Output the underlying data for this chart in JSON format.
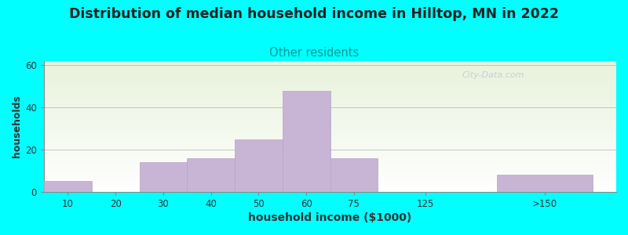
{
  "title": "Distribution of median household income in Hilltop, MN in 2022",
  "subtitle": "Other residents",
  "xlabel": "household income ($1000)",
  "ylabel": "households",
  "background_color": "#00FFFF",
  "bar_color": "#c8b4d4",
  "bar_edge_color": "#b8a4c8",
  "title_fontsize": 12.5,
  "title_color": "#222222",
  "subtitle_fontsize": 10.5,
  "subtitle_color": "#009999",
  "xlabel_fontsize": 10,
  "ylabel_fontsize": 9,
  "yticks": [
    0,
    20,
    40,
    60
  ],
  "ylim": [
    0,
    62
  ],
  "watermark": "City-Data.com",
  "tick_labels": [
    "10",
    "20",
    "30",
    "40",
    "50",
    "60",
    "75",
    "125",
    ">150"
  ],
  "tick_positions": [
    0.5,
    1.5,
    2.5,
    3.5,
    4.5,
    5.5,
    6.5,
    8.0,
    10.5
  ],
  "bar_lefts": [
    0.0,
    2.0,
    3.0,
    4.0,
    5.0,
    6.0,
    9.5
  ],
  "bar_widths": [
    1.0,
    1.0,
    1.0,
    1.0,
    1.0,
    1.0,
    2.0
  ],
  "bar_heights": [
    5,
    14,
    16,
    25,
    48,
    16,
    8
  ],
  "xlim": [
    0,
    12
  ]
}
